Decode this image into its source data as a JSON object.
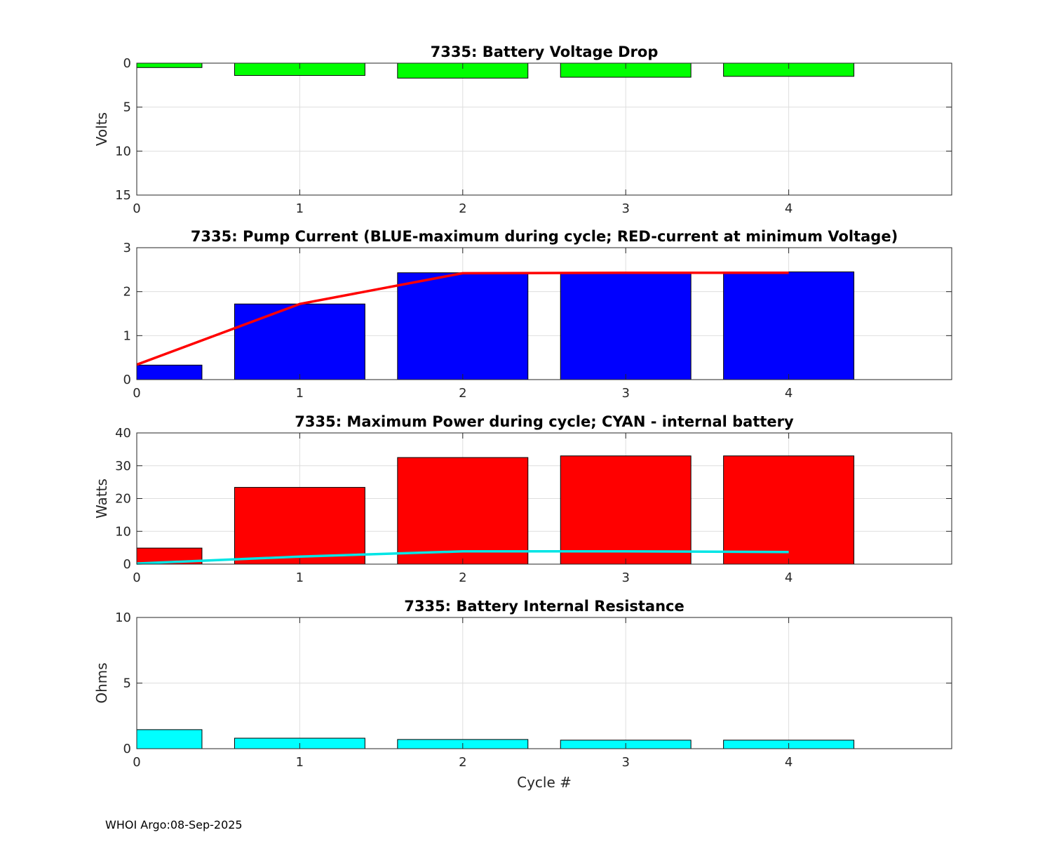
{
  "chart_data": [
    {
      "type": "bar",
      "title": "7335: Battery Voltage Drop",
      "xlabel": "",
      "ylabel": "Volts",
      "y_reversed": true,
      "xlim": [
        0,
        5
      ],
      "ylim": [
        0,
        15
      ],
      "xticks": [
        0,
        1,
        2,
        3,
        4
      ],
      "yticks": [
        0,
        5,
        10,
        15
      ],
      "grid": true,
      "bar_color": "#00ff00",
      "bar_width": 0.8,
      "x": [
        0,
        1,
        2,
        3,
        4
      ],
      "values": [
        0.5,
        1.4,
        1.7,
        1.6,
        1.5
      ]
    },
    {
      "type": "bar",
      "title": "7335: Pump Current (BLUE-maximum during cycle; RED-current at minimum Voltage)",
      "xlabel": "",
      "ylabel": "",
      "xlim": [
        0,
        5
      ],
      "ylim": [
        0,
        3
      ],
      "xticks": [
        0,
        1,
        2,
        3,
        4
      ],
      "yticks": [
        0,
        1,
        2,
        3
      ],
      "grid": true,
      "bar_color": "#0000ff",
      "bar_width": 0.8,
      "x": [
        0,
        1,
        2,
        3,
        4
      ],
      "values": [
        0.33,
        1.72,
        2.43,
        2.43,
        2.45
      ],
      "line": {
        "color": "#ff0000",
        "x": [
          0,
          1,
          2,
          3,
          4
        ],
        "values": [
          0.34,
          1.72,
          2.42,
          2.43,
          2.43
        ]
      }
    },
    {
      "type": "bar",
      "title": "7335: Maximum Power during cycle; CYAN - internal battery",
      "xlabel": "",
      "ylabel": "Watts",
      "xlim": [
        0,
        5
      ],
      "ylim": [
        0,
        40
      ],
      "xticks": [
        0,
        1,
        2,
        3,
        4
      ],
      "yticks": [
        0,
        10,
        20,
        30,
        40
      ],
      "grid": true,
      "bar_color": "#ff0000",
      "bar_width": 0.8,
      "x": [
        0,
        1,
        2,
        3,
        4
      ],
      "values": [
        4.9,
        23.4,
        32.5,
        33.0,
        33.0
      ],
      "line": {
        "color": "#00e5e5",
        "x": [
          0,
          1,
          2,
          3,
          4
        ],
        "values": [
          0.2,
          2.3,
          3.9,
          3.9,
          3.7
        ]
      }
    },
    {
      "type": "bar",
      "title": "7335: Battery Internal Resistance",
      "xlabel": "Cycle #",
      "ylabel": "Ohms",
      "xlim": [
        0,
        5
      ],
      "ylim": [
        0,
        10
      ],
      "xticks": [
        0,
        1,
        2,
        3,
        4
      ],
      "yticks": [
        0,
        5,
        10
      ],
      "grid": true,
      "bar_color": "#00ffff",
      "bar_width": 0.8,
      "x": [
        0,
        1,
        2,
        3,
        4
      ],
      "values": [
        1.45,
        0.8,
        0.7,
        0.65,
        0.65
      ]
    }
  ],
  "footer": "WHOI Argo:08-Sep-2025"
}
